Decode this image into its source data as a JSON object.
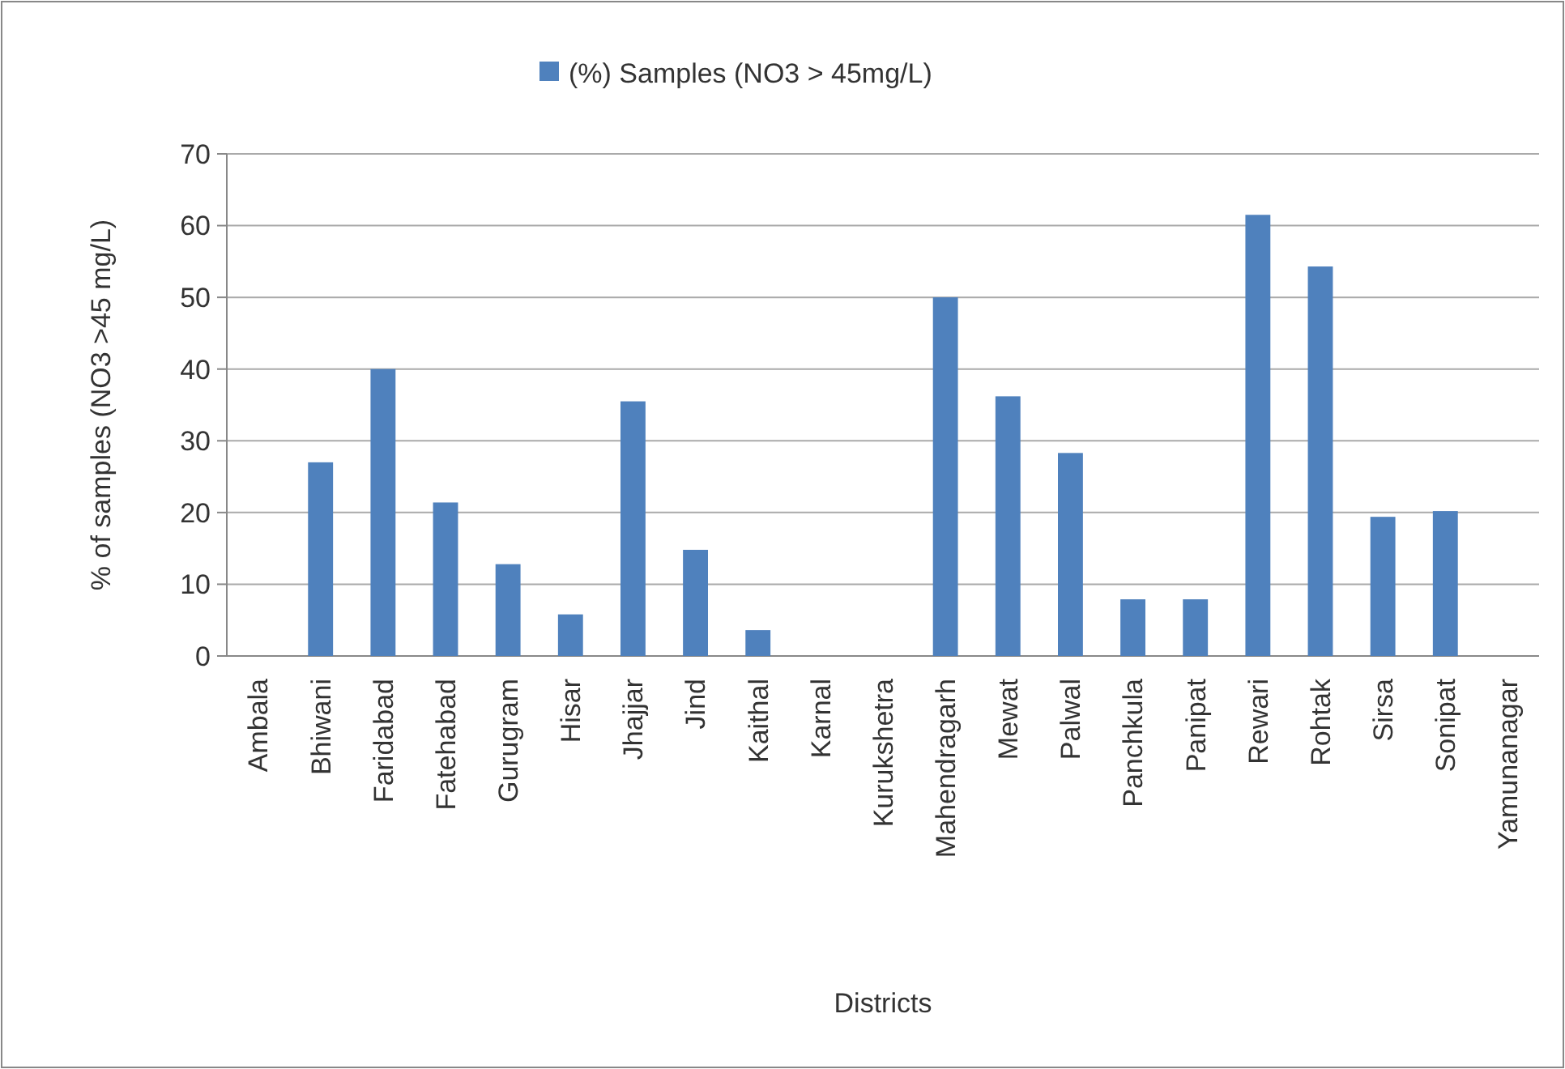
{
  "chart_data": {
    "type": "bar",
    "xlabel": "Districts",
    "ylabel": "% of samples (NO3 >45 mg/L)",
    "categories": [
      "Ambala",
      "Bhiwani",
      "Faridabad",
      "Fatehabad",
      "Gurugram",
      "Hisar",
      "Jhajjar",
      "Jind",
      "Kaithal",
      "Karnal",
      "Kurukshetra",
      "Mahendragarh",
      "Mewat",
      "Palwal",
      "Panchkula",
      "Panipat",
      "Rewari",
      "Rohtak",
      "Sirsa",
      "Sonipat",
      "Yamunanagar"
    ],
    "series": [
      {
        "name": "(%) Samples (NO3 > 45mg/L)",
        "color": "#4f81bd",
        "values": [
          0,
          27,
          40,
          21.4,
          12.8,
          5.8,
          35.5,
          14.8,
          3.6,
          0,
          0,
          50,
          36.2,
          28.3,
          7.9,
          7.9,
          61.5,
          54.3,
          19.4,
          20.2,
          0
        ]
      }
    ],
    "ylim": [
      0,
      70
    ],
    "yticks": [
      0,
      10,
      20,
      30,
      40,
      50,
      60,
      70
    ],
    "grid": "y",
    "legend": "top"
  }
}
